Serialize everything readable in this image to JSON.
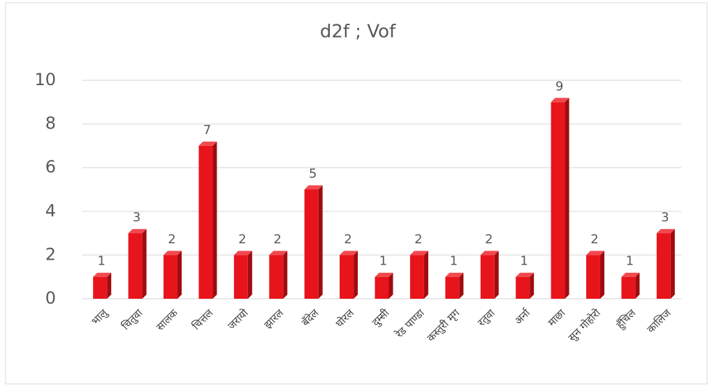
{
  "chart_data": {
    "type": "bar",
    "title": "d2f ; Vof",
    "categories": [
      "भालु",
      "चितुवा",
      "सालक",
      "चित्तल",
      "जरायो",
      "झारल",
      "बँदेल",
      "घोरल",
      "दुम्सी",
      "रेड पाण्डा",
      "कस्तुरी मृग",
      "रतुवा",
      "अर्ना",
      "माछा",
      "सुन गोहोरो",
      "हुँचिल",
      "कालिज"
    ],
    "values": [
      1,
      3,
      2,
      7,
      2,
      2,
      5,
      2,
      1,
      2,
      1,
      2,
      1,
      9,
      2,
      1,
      3
    ],
    "color": "#e8141b",
    "ylim": [
      0,
      10
    ],
    "yticks": [
      0,
      2,
      4,
      6,
      8,
      10
    ],
    "grid": true
  }
}
